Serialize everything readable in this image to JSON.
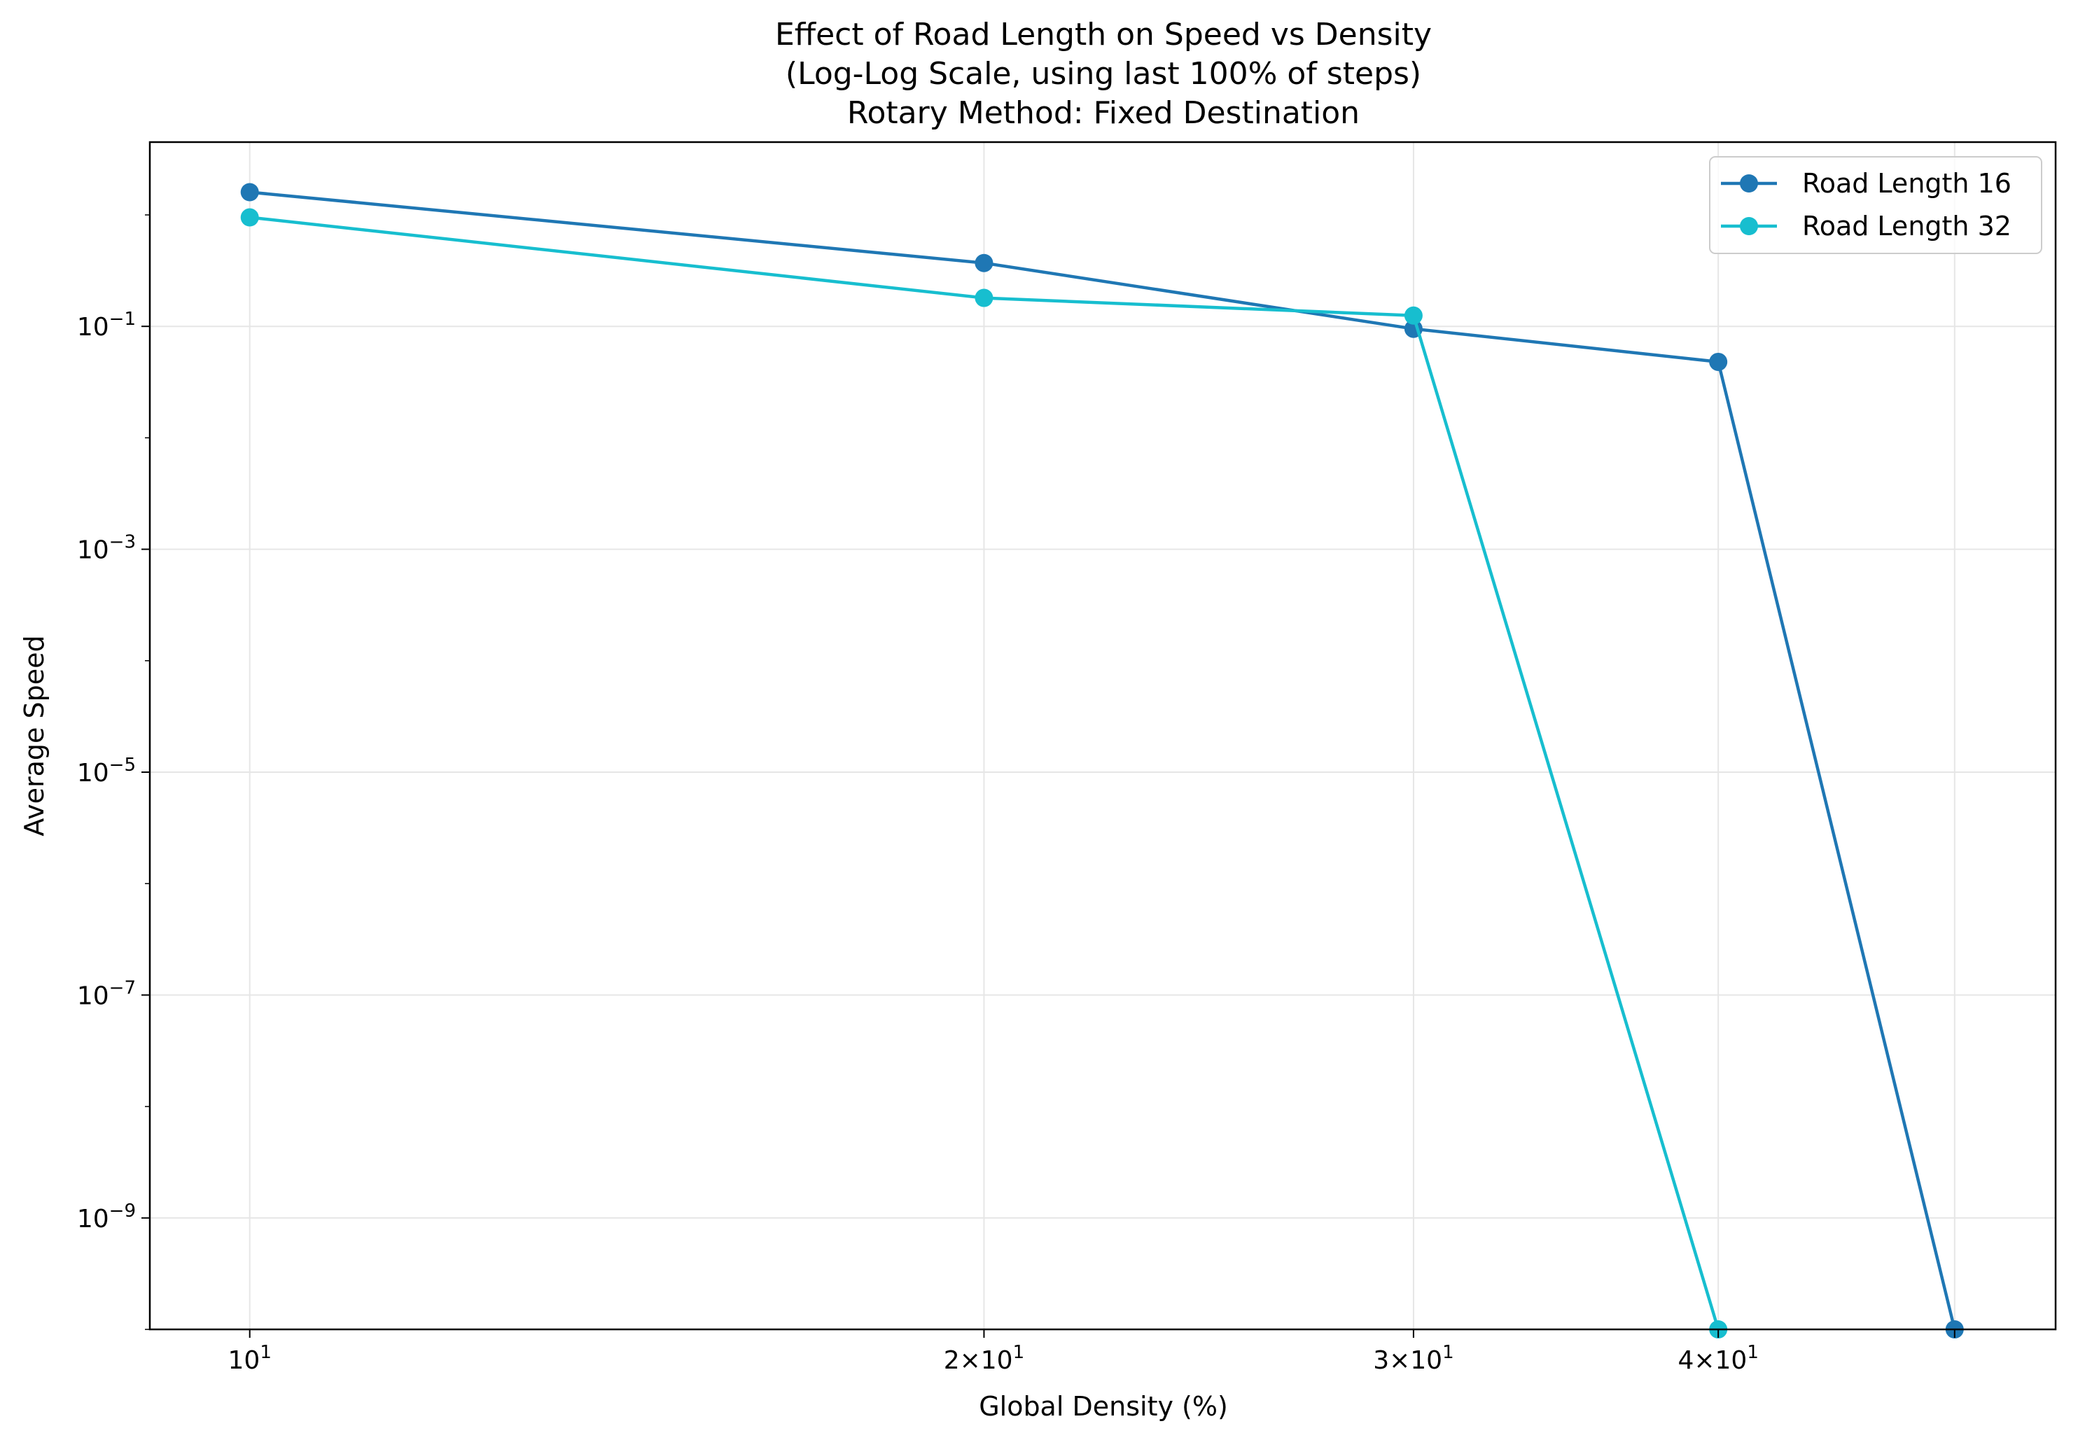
{
  "chart_data": {
    "type": "line",
    "title_lines": [
      "Effect of Road Length on Speed vs Density",
      "(Log-Log Scale, using last 100% of steps)",
      "Rotary Method: Fixed Destination"
    ],
    "xlabel": "Global Density (%)",
    "ylabel": "Average Speed",
    "xscale": "log",
    "yscale": "log",
    "xlim": [
      9.1,
      55
    ],
    "ylim": [
      1e-10,
      4.5
    ],
    "grid": true,
    "legend_position": "top-right",
    "x_ticks": [
      {
        "value": 10,
        "base": "10",
        "exp": "1"
      },
      {
        "value": 20,
        "base": "2×10",
        "exp": "1"
      },
      {
        "value": 30,
        "base": "3×10",
        "exp": "1"
      },
      {
        "value": 40,
        "base": "4×10",
        "exp": "1"
      },
      {
        "value": 50,
        "base": "",
        "exp": ""
      }
    ],
    "y_ticks": [
      {
        "value": 0.1,
        "base": "10",
        "exp": "−1"
      },
      {
        "value": 0.001,
        "base": "10",
        "exp": "−3"
      },
      {
        "value": 1e-05,
        "base": "10",
        "exp": "−5"
      },
      {
        "value": 1e-07,
        "base": "10",
        "exp": "−7"
      },
      {
        "value": 1e-09,
        "base": "10",
        "exp": "−9"
      }
    ],
    "series": [
      {
        "name": "Road Length 16",
        "color": "#1f77b4",
        "x": [
          10,
          20,
          30,
          40,
          50
        ],
        "y": [
          1.6,
          0.37,
          0.095,
          0.048,
          1e-10
        ]
      },
      {
        "name": "Road Length 32",
        "color": "#17becf",
        "x": [
          10,
          20,
          30,
          40
        ],
        "y": [
          0.95,
          0.18,
          0.125,
          1e-10
        ]
      }
    ]
  }
}
